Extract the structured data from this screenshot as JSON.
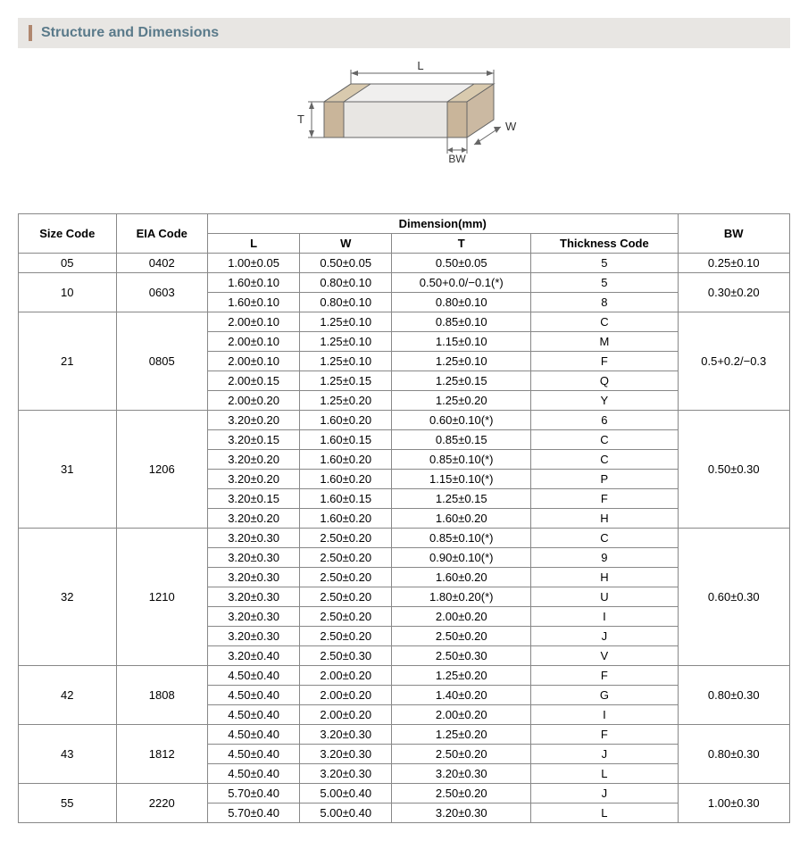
{
  "header": {
    "title": "Structure and Dimensions"
  },
  "diagram": {
    "labels": {
      "L": "L",
      "W": "W",
      "T": "T",
      "BW": "BW"
    },
    "stroke": "#666666",
    "fill_top": "#f0efee",
    "fill_side": "#d8d6d3",
    "fill_front": "#e8e6e3",
    "band_color": "#b59a7a"
  },
  "table": {
    "headers": {
      "size_code": "Size Code",
      "eia_code": "EIA Code",
      "dimension_group": "Dimension(mm)",
      "L": "L",
      "W": "W",
      "T": "T",
      "thickness_code": "Thickness Code",
      "BW": "BW"
    },
    "groups": [
      {
        "size_code": "05",
        "eia_code": "0402",
        "bw": "0.25±0.10",
        "rows": [
          {
            "L": "1.00±0.05",
            "W": "0.50±0.05",
            "T": "0.50±0.05",
            "tc": "5"
          }
        ]
      },
      {
        "size_code": "10",
        "eia_code": "0603",
        "bw": "0.30±0.20",
        "rows": [
          {
            "L": "1.60±0.10",
            "W": "0.80±0.10",
            "T": "0.50+0.0/−0.1(*)",
            "tc": "5"
          },
          {
            "L": "1.60±0.10",
            "W": "0.80±0.10",
            "T": "0.80±0.10",
            "tc": "8"
          }
        ]
      },
      {
        "size_code": "21",
        "eia_code": "0805",
        "bw": "0.5+0.2/−0.3",
        "rows": [
          {
            "L": "2.00±0.10",
            "W": "1.25±0.10",
            "T": "0.85±0.10",
            "tc": "C"
          },
          {
            "L": "2.00±0.10",
            "W": "1.25±0.10",
            "T": "1.15±0.10",
            "tc": "M"
          },
          {
            "L": "2.00±0.10",
            "W": "1.25±0.10",
            "T": "1.25±0.10",
            "tc": "F"
          },
          {
            "L": "2.00±0.15",
            "W": "1.25±0.15",
            "T": "1.25±0.15",
            "tc": "Q"
          },
          {
            "L": "2.00±0.20",
            "W": "1.25±0.20",
            "T": "1.25±0.20",
            "tc": "Y"
          }
        ]
      },
      {
        "size_code": "31",
        "eia_code": "1206",
        "bw": "0.50±0.30",
        "rows": [
          {
            "L": "3.20±0.20",
            "W": "1.60±0.20",
            "T": "0.60±0.10(*)",
            "tc": "6"
          },
          {
            "L": "3.20±0.15",
            "W": "1.60±0.15",
            "T": "0.85±0.15",
            "tc": "C"
          },
          {
            "L": "3.20±0.20",
            "W": "1.60±0.20",
            "T": "0.85±0.10(*)",
            "tc": "C"
          },
          {
            "L": "3.20±0.20",
            "W": "1.60±0.20",
            "T": "1.15±0.10(*)",
            "tc": "P"
          },
          {
            "L": "3.20±0.15",
            "W": "1.60±0.15",
            "T": "1.25±0.15",
            "tc": "F"
          },
          {
            "L": "3.20±0.20",
            "W": "1.60±0.20",
            "T": "1.60±0.20",
            "tc": "H"
          }
        ]
      },
      {
        "size_code": "32",
        "eia_code": "1210",
        "bw": "0.60±0.30",
        "rows": [
          {
            "L": "3.20±0.30",
            "W": "2.50±0.20",
            "T": "0.85±0.10(*)",
            "tc": "C"
          },
          {
            "L": "3.20±0.30",
            "W": "2.50±0.20",
            "T": "0.90±0.10(*)",
            "tc": "9"
          },
          {
            "L": "3.20±0.30",
            "W": "2.50±0.20",
            "T": "1.60±0.20",
            "tc": "H"
          },
          {
            "L": "3.20±0.30",
            "W": "2.50±0.20",
            "T": "1.80±0.20(*)",
            "tc": "U"
          },
          {
            "L": "3.20±0.30",
            "W": "2.50±0.20",
            "T": "2.00±0.20",
            "tc": "I"
          },
          {
            "L": "3.20±0.30",
            "W": "2.50±0.20",
            "T": "2.50±0.20",
            "tc": "J"
          },
          {
            "L": "3.20±0.40",
            "W": "2.50±0.30",
            "T": "2.50±0.30",
            "tc": "V"
          }
        ]
      },
      {
        "size_code": "42",
        "eia_code": "1808",
        "bw": "0.80±0.30",
        "rows": [
          {
            "L": "4.50±0.40",
            "W": "2.00±0.20",
            "T": "1.25±0.20",
            "tc": "F"
          },
          {
            "L": "4.50±0.40",
            "W": "2.00±0.20",
            "T": "1.40±0.20",
            "tc": "G"
          },
          {
            "L": "4.50±0.40",
            "W": "2.00±0.20",
            "T": "2.00±0.20",
            "tc": "I"
          }
        ]
      },
      {
        "size_code": "43",
        "eia_code": "1812",
        "bw": "0.80±0.30",
        "rows": [
          {
            "L": "4.50±0.40",
            "W": "3.20±0.30",
            "T": "1.25±0.20",
            "tc": "F"
          },
          {
            "L": "4.50±0.40",
            "W": "3.20±0.30",
            "T": "2.50±0.20",
            "tc": "J"
          },
          {
            "L": "4.50±0.40",
            "W": "3.20±0.30",
            "T": "3.20±0.30",
            "tc": "L"
          }
        ]
      },
      {
        "size_code": "55",
        "eia_code": "2220",
        "bw": "1.00±0.30",
        "rows": [
          {
            "L": "5.70±0.40",
            "W": "5.00±0.40",
            "T": "2.50±0.20",
            "tc": "J"
          },
          {
            "L": "5.70±0.40",
            "W": "5.00±0.40",
            "T": "3.20±0.30",
            "tc": "L"
          }
        ]
      }
    ]
  }
}
